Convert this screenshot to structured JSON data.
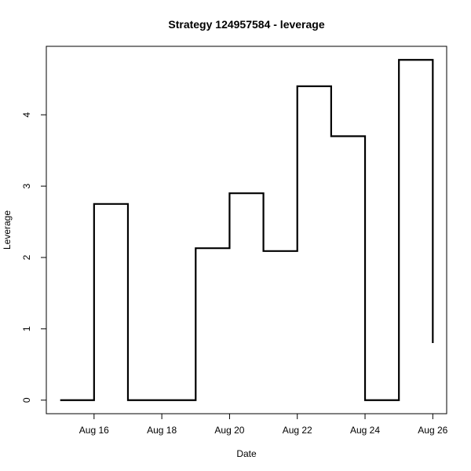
{
  "chart_data": {
    "type": "line",
    "step": "post",
    "title": "Strategy 124957584 - leverage",
    "xlabel": "Date",
    "ylabel": "Leverage",
    "x": [
      "2023-08-15",
      "2023-08-16",
      "2023-08-17",
      "2023-08-18",
      "2023-08-19",
      "2023-08-20",
      "2023-08-21",
      "2023-08-22",
      "2023-08-23",
      "2023-08-24",
      "2023-08-25",
      "2023-08-26"
    ],
    "series": [
      {
        "values": [
          0,
          2.75,
          0,
          0,
          2.13,
          2.9,
          2.09,
          4.4,
          3.7,
          0,
          4.77,
          0.8
        ],
        "color": "#000000"
      }
    ],
    "xlim": [
      "2023-08-14T14:10",
      "2023-08-26T09:50"
    ],
    "ylim": [
      -0.19,
      4.96
    ],
    "x_ticks": [
      {
        "date": "2023-08-16",
        "label": "Aug 16"
      },
      {
        "date": "2023-08-18",
        "label": "Aug 18"
      },
      {
        "date": "2023-08-20",
        "label": "Aug 20"
      },
      {
        "date": "2023-08-22",
        "label": "Aug 22"
      },
      {
        "date": "2023-08-24",
        "label": "Aug 24"
      },
      {
        "date": "2023-08-26",
        "label": "Aug 26"
      }
    ],
    "y_ticks": [
      0,
      1,
      2,
      3,
      4
    ],
    "grid": false,
    "legend": "none"
  }
}
